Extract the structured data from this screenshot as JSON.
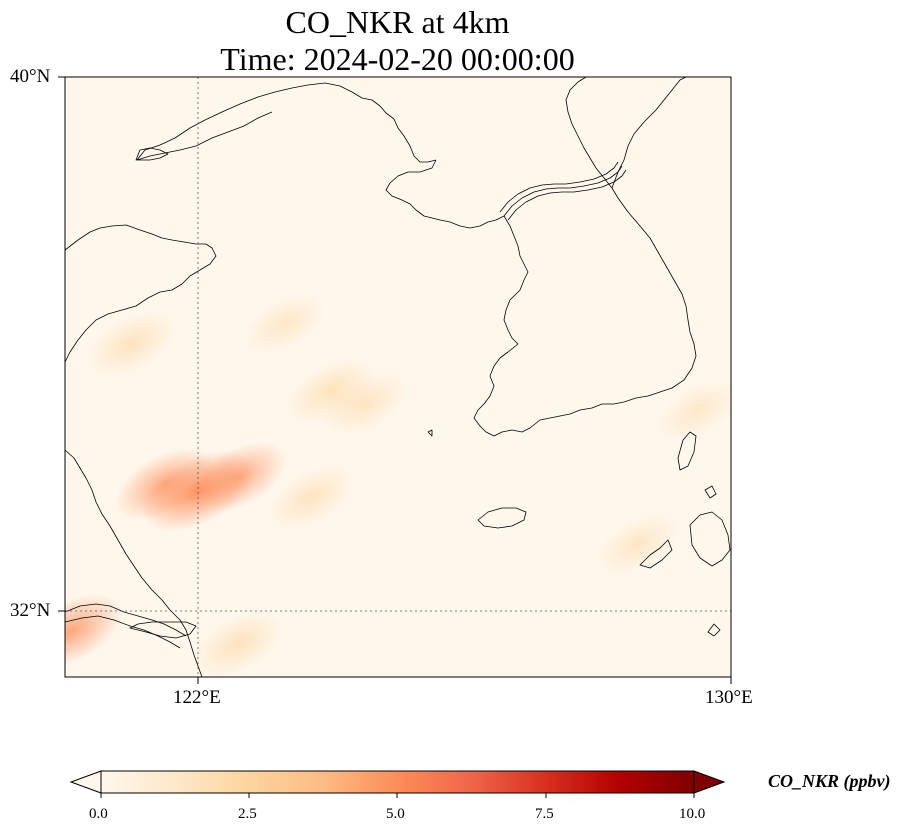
{
  "title_line1": "CO_NKR at 4km",
  "title_line2": "Time: 2024-02-20 00:00:00",
  "y_ticks": [
    "40°N",
    "32°N"
  ],
  "x_ticks": [
    "122°E",
    "130°E"
  ],
  "colorbar": {
    "label": "CO_NKR (ppbv)",
    "ticks": [
      "0.0",
      "2.5",
      "5.0",
      "7.5",
      "10.0"
    ],
    "min": 0,
    "max": 10,
    "colormap": "OrRd",
    "extend": "both"
  },
  "map": {
    "lon_range": [
      120,
      130
    ],
    "lat_range": [
      31,
      40
    ],
    "gridlines": "dotted",
    "coastline_color": "#000000",
    "hotspots": [
      {
        "lon": 122.0,
        "lat": 33.8,
        "value": 3.6
      },
      {
        "lon": 121.5,
        "lat": 33.9,
        "value": 2.4
      },
      {
        "lon": 122.6,
        "lat": 34.0,
        "value": 2.2
      },
      {
        "lon": 121.0,
        "lat": 36.0,
        "value": 1.5
      },
      {
        "lon": 124.0,
        "lat": 35.3,
        "value": 1.6
      },
      {
        "lon": 124.5,
        "lat": 35.1,
        "value": 1.2
      },
      {
        "lon": 123.7,
        "lat": 33.7,
        "value": 1.3
      },
      {
        "lon": 120.1,
        "lat": 31.7,
        "value": 2.6
      },
      {
        "lon": 122.6,
        "lat": 31.5,
        "value": 1.6
      },
      {
        "lon": 128.6,
        "lat": 33.0,
        "value": 0.9
      },
      {
        "lon": 123.3,
        "lat": 36.3,
        "value": 0.8
      },
      {
        "lon": 129.5,
        "lat": 35.0,
        "value": 0.7
      }
    ]
  }
}
